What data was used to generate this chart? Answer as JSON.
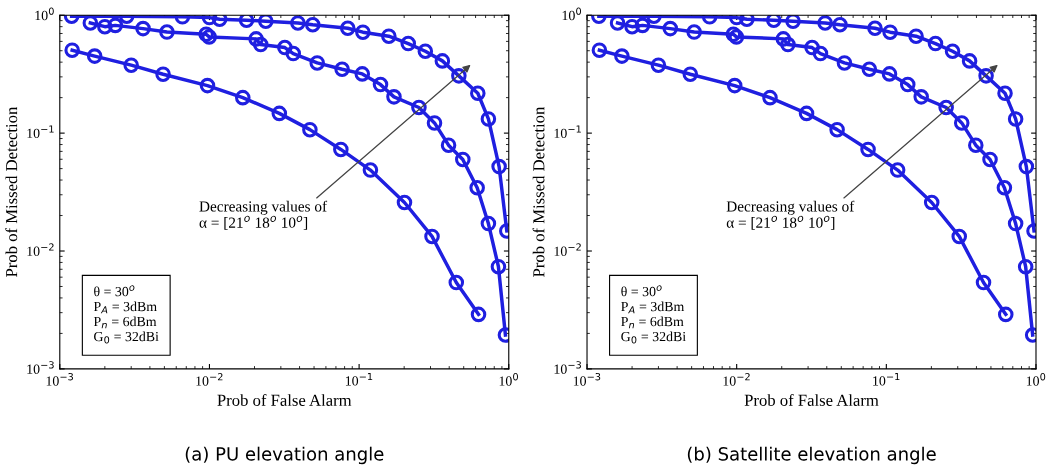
{
  "chart_data": [
    {
      "type": "line",
      "title": "(a) PU elevation angle",
      "xlabel": "Prob of False Alarm",
      "ylabel": "Prob of Missed Detection",
      "log": "xy",
      "grid": false,
      "legend": false,
      "marker": "circle",
      "line_style": "solid",
      "xlim": [
        0.001,
        1
      ],
      "ylim": [
        0.001,
        1
      ],
      "xticks": [
        {
          "value": 0.001,
          "label": "10$^{−3}$"
        },
        {
          "value": 0.01,
          "label": "10$^{−2}$"
        },
        {
          "value": 0.1,
          "label": "10$^{−1}$"
        },
        {
          "value": 1,
          "label": "10$^{0}$"
        }
      ],
      "yticks": [
        {
          "value": 0.001,
          "label": "10$^{−3}$"
        },
        {
          "value": 0.01,
          "label": "10$^{−2}$"
        },
        {
          "value": 0.1,
          "label": "10$^{−1}$"
        },
        {
          "value": 1,
          "label": "10$^{0}$"
        }
      ],
      "annotations": [
        "Decreasing values of\nα = [21$^{o}$ 18$^{o}$ 10$^{o}$]",
        "θ = 30$^{o}$\nP$_{A}$ = 3dBm\nP$_{n}$ = 6dBm\nG$_{0}$ = 32dBi"
      ],
      "series": [
        {
          "color": "#1f1fe0",
          "x": [
            0.0012,
            0.0028,
            0.0066,
            0.01,
            0.0117,
            0.0177,
            0.0238,
            0.039,
            0.049,
            0.084,
            0.106,
            0.158,
            0.213,
            0.277,
            0.36,
            0.464,
            0.621,
            0.731,
            0.862,
            0.97
          ],
          "values": [
            0.98,
            0.98,
            0.97,
            0.955,
            0.925,
            0.907,
            0.89,
            0.86,
            0.83,
            0.776,
            0.718,
            0.664,
            0.575,
            0.495,
            0.41,
            0.306,
            0.218,
            0.132,
            0.052,
            0.0148
          ]
        },
        {
          "color": "#1f1fe0",
          "x": [
            0.0016,
            0.002,
            0.00235,
            0.0036,
            0.0052,
            0.0095,
            0.00996,
            0.0205,
            0.022,
            0.0319,
            0.0363,
            0.0525,
            0.077,
            0.105,
            0.139,
            0.171,
            0.251,
            0.319,
            0.396,
            0.493,
            0.615,
            0.731,
            0.853,
            0.95
          ],
          "values": [
            0.86,
            0.8,
            0.82,
            0.77,
            0.72,
            0.69,
            0.655,
            0.63,
            0.564,
            0.532,
            0.473,
            0.394,
            0.348,
            0.318,
            0.258,
            0.203,
            0.165,
            0.122,
            0.079,
            0.0598,
            0.0344,
            0.0171,
            0.00736,
            0.00194
          ]
        },
        {
          "color": "#1f1fe0",
          "x": [
            0.00121,
            0.00171,
            0.003,
            0.0049,
            0.0097,
            0.0167,
            0.0293,
            0.0469,
            0.0755,
            0.119,
            0.201,
            0.307,
            0.446,
            0.628
          ],
          "values": [
            0.505,
            0.45,
            0.377,
            0.316,
            0.253,
            0.2,
            0.147,
            0.107,
            0.0727,
            0.0486,
            0.0258,
            0.0133,
            0.0054,
            0.0029
          ]
        }
      ]
    },
    {
      "type": "line",
      "title": "(b) Satellite elevation angle",
      "xlabel": "Prob of False Alarm",
      "ylabel": "Prob of Missed Detection",
      "log": "xy",
      "grid": false,
      "legend": false,
      "marker": "circle",
      "line_style": "solid",
      "xlim": [
        0.001,
        1
      ],
      "ylim": [
        0.001,
        1
      ],
      "xticks": [
        {
          "value": 0.001,
          "label": "10$^{−3}$"
        },
        {
          "value": 0.01,
          "label": "10$^{−2}$"
        },
        {
          "value": 0.1,
          "label": "10$^{−1}$"
        },
        {
          "value": 1,
          "label": "10$^{0}$"
        }
      ],
      "yticks": [
        {
          "value": 0.001,
          "label": "10$^{−3}$"
        },
        {
          "value": 0.01,
          "label": "10$^{−2}$"
        },
        {
          "value": 0.1,
          "label": "10$^{−1}$"
        },
        {
          "value": 1,
          "label": "10$^{0}$"
        }
      ],
      "annotations": [
        "Decreasing values of\nα = [21$^{o}$ 18$^{o}$ 10$^{o}$]",
        "θ = 30$^{o}$\nP$_{A}$ = 3dBm\nP$_{n}$ = 6dBm\nG$_{0}$ = 32dBi"
      ],
      "series": [
        {
          "color": "#1f1fe0",
          "x": [
            0.0012,
            0.0028,
            0.0066,
            0.01,
            0.0117,
            0.0177,
            0.0238,
            0.039,
            0.049,
            0.084,
            0.106,
            0.158,
            0.213,
            0.277,
            0.36,
            0.464,
            0.621,
            0.731,
            0.862,
            0.97
          ],
          "values": [
            0.98,
            0.98,
            0.97,
            0.955,
            0.925,
            0.907,
            0.89,
            0.86,
            0.83,
            0.776,
            0.718,
            0.664,
            0.575,
            0.495,
            0.41,
            0.306,
            0.218,
            0.132,
            0.052,
            0.0148
          ]
        },
        {
          "color": "#1f1fe0",
          "x": [
            0.0016,
            0.002,
            0.00235,
            0.0036,
            0.0052,
            0.0095,
            0.00996,
            0.0205,
            0.022,
            0.0319,
            0.0363,
            0.0525,
            0.077,
            0.105,
            0.139,
            0.171,
            0.251,
            0.319,
            0.396,
            0.493,
            0.615,
            0.731,
            0.853,
            0.95
          ],
          "values": [
            0.86,
            0.8,
            0.82,
            0.77,
            0.72,
            0.69,
            0.655,
            0.63,
            0.564,
            0.532,
            0.473,
            0.394,
            0.348,
            0.318,
            0.258,
            0.203,
            0.165,
            0.122,
            0.079,
            0.0598,
            0.0344,
            0.0171,
            0.00736,
            0.00194
          ]
        },
        {
          "color": "#1f1fe0",
          "x": [
            0.00121,
            0.00171,
            0.003,
            0.0049,
            0.0097,
            0.0167,
            0.0293,
            0.0469,
            0.0755,
            0.119,
            0.201,
            0.307,
            0.446,
            0.628
          ],
          "values": [
            0.505,
            0.45,
            0.377,
            0.316,
            0.253,
            0.2,
            0.147,
            0.107,
            0.0727,
            0.0486,
            0.0258,
            0.0133,
            0.0054,
            0.0029
          ]
        }
      ]
    }
  ]
}
